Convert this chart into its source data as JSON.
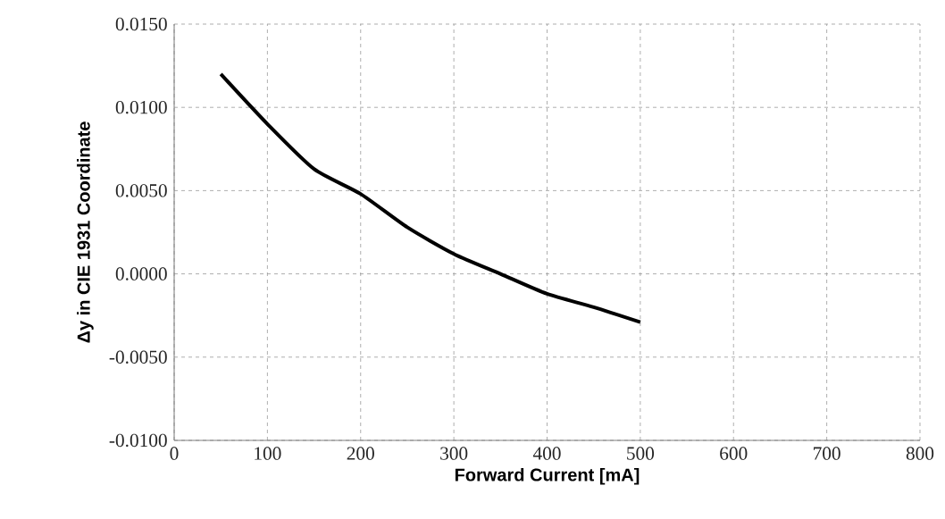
{
  "chart_data": {
    "type": "line",
    "xlabel": "Forward Current [mA]",
    "ylabel": "Δy in CIE 1931 Coordinate",
    "x": [
      50,
      100,
      150,
      200,
      250,
      300,
      350,
      400,
      450,
      500
    ],
    "series": [
      {
        "color": "#000000",
        "values": [
          0.012,
          0.009,
          0.0063,
          0.0048,
          0.0028,
          0.0012,
          0.0,
          -0.0012,
          -0.002,
          -0.0029
        ]
      }
    ],
    "xlim": [
      0,
      800
    ],
    "ylim": [
      -0.01,
      0.015
    ],
    "xticks": [
      0,
      100,
      200,
      300,
      400,
      500,
      600,
      700,
      800
    ],
    "yticks": [
      {
        "value": -0.01,
        "label": "-0.0100"
      },
      {
        "value": -0.005,
        "label": "-0.0050"
      },
      {
        "value": 0,
        "label": "0.0000"
      },
      {
        "value": 0.005,
        "label": "0.0050"
      },
      {
        "value": 0.01,
        "label": "0.0100"
      },
      {
        "value": 0.015,
        "label": "0.0150"
      }
    ],
    "grid": true,
    "marker": "none",
    "line_style": "solid"
  }
}
